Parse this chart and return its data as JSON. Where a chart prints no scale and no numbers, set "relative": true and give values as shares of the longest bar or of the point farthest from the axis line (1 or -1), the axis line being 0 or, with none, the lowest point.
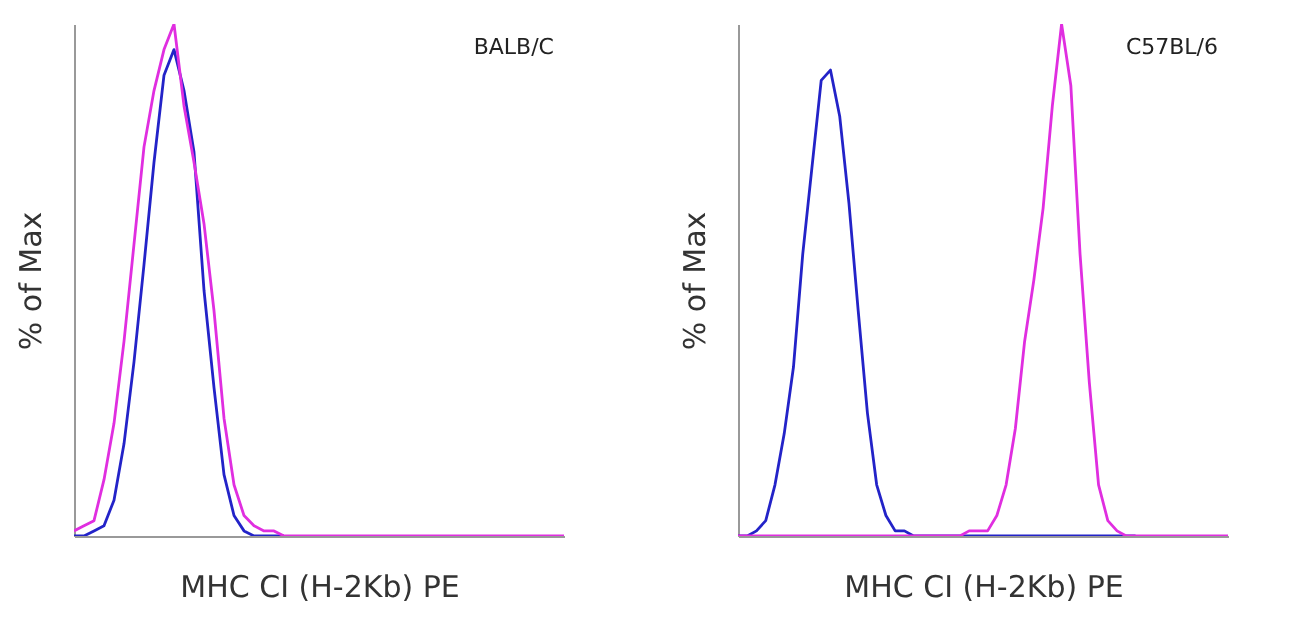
{
  "chart_data": [
    {
      "type": "line",
      "relative": true,
      "tick_labels": false,
      "grid": false,
      "legend": false,
      "ylabel": "% of Max",
      "xlabel": "MHC CI (H-2Kb) PE",
      "annotations": [
        "BALB/C"
      ],
      "categories": [
        null,
        null,
        null,
        null,
        null,
        null,
        null,
        null,
        null,
        null,
        null,
        null,
        null,
        null,
        null,
        null,
        null,
        null,
        null,
        null,
        null,
        null,
        null,
        null,
        null,
        null,
        null,
        null,
        null,
        null,
        null,
        null,
        null,
        null,
        null,
        null,
        null,
        null,
        null,
        null,
        null,
        null,
        null,
        null,
        null,
        null,
        null,
        null,
        null,
        null
      ],
      "series": [
        {
          "color": "#2323c8",
          "values": [
            0,
            0,
            0.01,
            0.02,
            0.07,
            0.18,
            0.34,
            0.53,
            0.73,
            0.9,
            0.95,
            0.87,
            0.75,
            0.48,
            0.29,
            0.12,
            0.04,
            0.01,
            0,
            0,
            0,
            0,
            null,
            null,
            null,
            null,
            null,
            null,
            null,
            null,
            null,
            null,
            null,
            null,
            null,
            null,
            null,
            null,
            null,
            null,
            null,
            null,
            null,
            null,
            null,
            null,
            null,
            null,
            null,
            null
          ]
        },
        {
          "color": "#e02ee0",
          "values": [
            0.01,
            0.02,
            0.03,
            0.11,
            0.22,
            0.38,
            0.57,
            0.76,
            0.87,
            0.95,
            1,
            0.84,
            0.73,
            0.61,
            0.44,
            0.23,
            0.1,
            0.04,
            0.02,
            0.01,
            0.01,
            0,
            0,
            0,
            0,
            0,
            0,
            0,
            0,
            0,
            0,
            0,
            0,
            0,
            0,
            0,
            0,
            0,
            0,
            0,
            0,
            0,
            0,
            0,
            0,
            0,
            0,
            0,
            0,
            0
          ]
        }
      ]
    },
    {
      "type": "line",
      "relative": true,
      "tick_labels": false,
      "grid": false,
      "legend": false,
      "ylabel": "% of Max",
      "xlabel": "MHC CI (H-2Kb) PE",
      "annotations": [
        "C57BL/6"
      ],
      "categories": [
        null,
        null,
        null,
        null,
        null,
        null,
        null,
        null,
        null,
        null,
        null,
        null,
        null,
        null,
        null,
        null,
        null,
        null,
        null,
        null,
        null,
        null,
        null,
        null,
        null,
        null,
        null,
        null,
        null,
        null,
        null,
        null,
        null,
        null,
        null,
        null,
        null,
        null,
        null,
        null,
        null,
        null,
        null,
        null,
        null,
        null,
        null,
        null,
        null,
        null,
        null,
        null,
        null,
        null
      ],
      "series": [
        {
          "color": "#2323c8",
          "values": [
            0,
            0,
            0.01,
            0.03,
            0.1,
            0.2,
            0.33,
            0.55,
            0.72,
            0.89,
            0.91,
            0.82,
            0.65,
            0.44,
            0.24,
            0.1,
            0.04,
            0.01,
            0.01,
            0,
            0,
            0,
            0,
            0,
            0,
            0,
            0,
            0,
            0,
            0,
            0,
            0,
            0,
            0,
            0,
            0,
            0,
            0,
            0,
            0,
            0,
            0,
            0,
            0,
            null,
            null,
            null,
            null,
            null,
            null,
            null,
            null,
            null,
            null
          ]
        },
        {
          "color": "#e02ee0",
          "values": [
            0,
            0,
            0,
            0,
            0,
            0,
            0,
            0,
            0,
            0,
            0,
            0,
            0,
            0,
            0,
            0,
            0,
            0,
            0,
            0,
            0,
            0,
            0,
            0,
            0,
            0.01,
            0.01,
            0.01,
            0.04,
            0.1,
            0.21,
            0.38,
            0.5,
            0.64,
            0.84,
            1,
            0.88,
            0.55,
            0.3,
            0.1,
            0.03,
            0.01,
            0,
            0,
            0,
            0,
            0,
            0,
            0,
            0,
            0,
            0,
            0,
            0
          ]
        }
      ]
    }
  ]
}
